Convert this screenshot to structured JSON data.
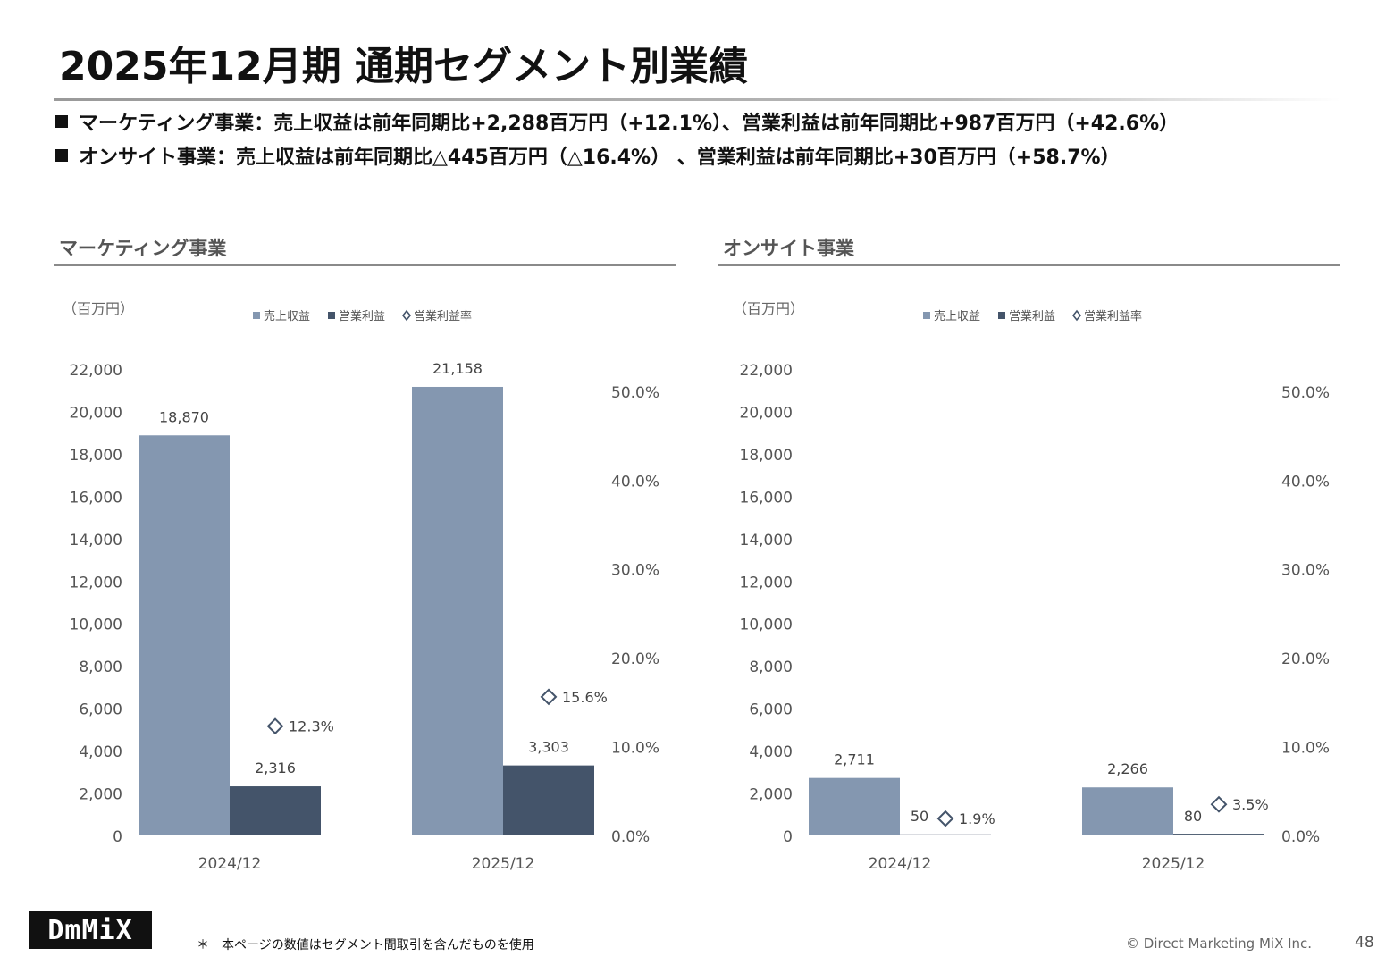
{
  "title": "2025年12月期 通期セグメント別業績",
  "bullets": [
    "マーケティング事業：売上収益は前年同期比+2,288百万円（+12.1%）、営業利益は前年同期比+987百万円（+42.6%）",
    "オンサイト事業：売上収益は前年同期比△445百万円（△16.4%） 、営業利益は前年同期比+30百万円（+58.7%）"
  ],
  "footnote": "＊　本ページの数値はセグメント間取引を含んだものを使用",
  "copyright": "© Direct Marketing MiX Inc.",
  "page_number": "48",
  "logo_text": "DmMiX",
  "colors": {
    "revenue": "#8497B0",
    "profit": "#44546A",
    "marker": "#44546A"
  },
  "chart_data": [
    {
      "type": "bar",
      "section_title": "マーケティング事業",
      "unit_label": "（百万円）",
      "categories": [
        "2024/12",
        "2025/12"
      ],
      "legend": [
        "売上収益",
        "営業利益",
        "営業利益率"
      ],
      "series": [
        {
          "name": "売上収益",
          "values": [
            18870,
            21158
          ],
          "labels": [
            "18,870",
            "21,158"
          ]
        },
        {
          "name": "営業利益",
          "values": [
            2316,
            3303
          ],
          "labels": [
            "2,316",
            "3,303"
          ]
        },
        {
          "name": "営業利益率",
          "values": [
            12.3,
            15.6
          ],
          "labels": [
            "12.3%",
            "15.6%"
          ],
          "axis": "right"
        }
      ],
      "y_ticks": [
        "0",
        "2,000",
        "4,000",
        "6,000",
        "8,000",
        "10,000",
        "12,000",
        "14,000",
        "16,000",
        "18,000",
        "20,000",
        "22,000"
      ],
      "ylim": [
        0,
        22000
      ],
      "y2_ticks": [
        "0.0%",
        "10.0%",
        "20.0%",
        "30.0%",
        "40.0%",
        "50.0%"
      ],
      "y2lim": [
        0,
        52.5
      ],
      "legend_position": "top"
    },
    {
      "type": "bar",
      "section_title": "オンサイト事業",
      "unit_label": "（百万円）",
      "categories": [
        "2024/12",
        "2025/12"
      ],
      "legend": [
        "売上収益",
        "営業利益",
        "営業利益率"
      ],
      "series": [
        {
          "name": "売上収益",
          "values": [
            2711,
            2266
          ],
          "labels": [
            "2,711",
            "2,266"
          ]
        },
        {
          "name": "営業利益",
          "values": [
            50,
            80
          ],
          "labels": [
            "50",
            "80"
          ]
        },
        {
          "name": "営業利益率",
          "values": [
            1.9,
            3.5
          ],
          "labels": [
            "1.9%",
            "3.5%"
          ],
          "axis": "right"
        }
      ],
      "y_ticks": [
        "0",
        "2,000",
        "4,000",
        "6,000",
        "8,000",
        "10,000",
        "12,000",
        "14,000",
        "16,000",
        "18,000",
        "20,000",
        "22,000"
      ],
      "ylim": [
        0,
        22000
      ],
      "y2_ticks": [
        "0.0%",
        "10.0%",
        "20.0%",
        "30.0%",
        "40.0%",
        "50.0%"
      ],
      "y2lim": [
        0,
        52.5
      ],
      "legend_position": "top"
    }
  ]
}
